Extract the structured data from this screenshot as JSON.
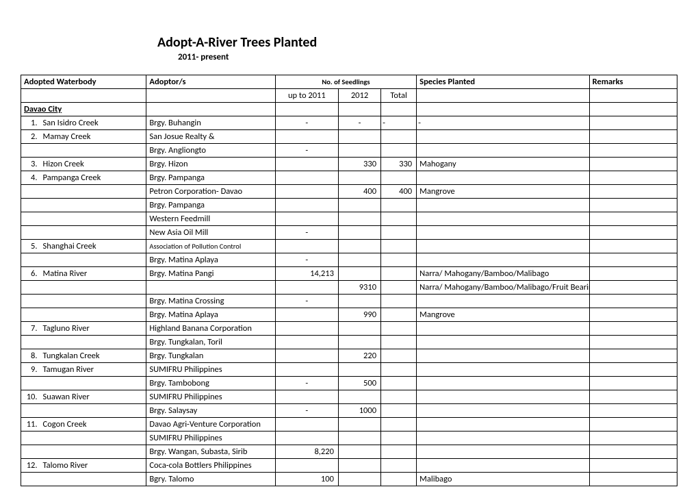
{
  "title": "Adopt-A-River Trees Planted",
  "subtitle": "2011- present",
  "headers": {
    "waterbody": "Adopted Waterbody",
    "adoptor": "Adoptor/s",
    "seedlings": "No. of Seedlings",
    "species": "Species Planted",
    "remarks": "Remarks",
    "upTo2011": "up to 2011",
    "y2012": "2012",
    "total": "Total"
  },
  "cityHeader": "Davao City",
  "rows": [
    {
      "n": "1.",
      "wb": "San Isidro Creek",
      "adp": "Brgy. Buhangin",
      "s1": "-",
      "s2": "-",
      "s3": "-",
      "sp": "-",
      "rm": ""
    },
    {
      "n": "2.",
      "wb": "Mamay Creek",
      "adp": "San Josue Realty &",
      "s1": "",
      "s2": "",
      "s3": "",
      "sp": "",
      "rm": ""
    },
    {
      "n": "",
      "wb": "",
      "adp": "Brgy. Angliongto",
      "s1": "-",
      "s2": "",
      "s3": "",
      "sp": "",
      "rm": ""
    },
    {
      "n": "3.",
      "wb": "Hizon Creek",
      "adp": "Brgy. Hizon",
      "s1": "",
      "s2": "330",
      "s3": "330",
      "sp": "Mahogany",
      "rm": ""
    },
    {
      "n": "4.",
      "wb": "Pampanga Creek",
      "adp": "Brgy. Pampanga",
      "s1": "",
      "s2": "",
      "s3": "",
      "sp": "",
      "rm": ""
    },
    {
      "n": "",
      "wb": "",
      "adp": "Petron Corporation- Davao",
      "s1": "",
      "s2": "400",
      "s3": "400",
      "sp": "Mangrove",
      "rm": ""
    },
    {
      "n": "",
      "wb": "",
      "adp": "Brgy. Pampanga",
      "s1": "",
      "s2": "",
      "s3": "",
      "sp": "",
      "rm": ""
    },
    {
      "n": "",
      "wb": "",
      "adp": "Western Feedmill",
      "s1": "",
      "s2": "",
      "s3": "",
      "sp": "",
      "rm": ""
    },
    {
      "n": "",
      "wb": "",
      "adp": "New Asia Oil Mill",
      "s1": "-",
      "s2": "",
      "s3": "",
      "sp": "",
      "rm": ""
    },
    {
      "n": "5.",
      "wb": "Shanghai Creek",
      "adp": "Association of Pollution Control",
      "s1": "",
      "s2": "",
      "s3": "",
      "sp": "",
      "rm": "",
      "small": true
    },
    {
      "n": "",
      "wb": "",
      "adp": "Brgy. Matina Aplaya",
      "s1": "-",
      "s2": "",
      "s3": "",
      "sp": "",
      "rm": ""
    },
    {
      "n": "6.",
      "wb": "Matina River",
      "adp": "Brgy. Matina Pangi",
      "s1": "14,213",
      "s2": "",
      "s3": "",
      "sp": "Narra/ Mahogany/Bamboo/Malibago",
      "rm": ""
    },
    {
      "n": "",
      "wb": "",
      "adp": "",
      "s1": "",
      "s2": "9310",
      "s3": "",
      "sp": "Narra/ Mahogany/Bamboo/Malibago/Fruit Bearing Trees",
      "rm": ""
    },
    {
      "n": "",
      "wb": "",
      "adp": "Brgy. Matina Crossing",
      "s1": "-",
      "s2": "",
      "s3": "",
      "sp": "",
      "rm": ""
    },
    {
      "n": "",
      "wb": "",
      "adp": "Brgy. Matina Aplaya",
      "s1": "",
      "s2": "990",
      "s3": "",
      "sp": "Mangrove",
      "rm": ""
    },
    {
      "n": "7.",
      "wb": "Tagluno River",
      "adp": "Highland Banana Corporation",
      "s1": "",
      "s2": "",
      "s3": "",
      "sp": "",
      "rm": ""
    },
    {
      "n": "",
      "wb": "",
      "adp": "Brgy. Tungkalan, Toril",
      "s1": "",
      "s2": "",
      "s3": "",
      "sp": "",
      "rm": ""
    },
    {
      "n": "8.",
      "wb": "Tungkalan Creek",
      "adp": "Brgy. Tungkalan",
      "s1": "",
      "s2": "220",
      "s3": "",
      "sp": "",
      "rm": ""
    },
    {
      "n": "9.",
      "wb": "Tamugan River",
      "adp": "SUMIFRU Philippines",
      "s1": "",
      "s2": "",
      "s3": "",
      "sp": "",
      "rm": ""
    },
    {
      "n": "",
      "wb": "",
      "adp": "Brgy. Tambobong",
      "s1": "-",
      "s2": "500",
      "s3": "",
      "sp": "",
      "rm": ""
    },
    {
      "n": "10.",
      "wb": "Suawan River",
      "adp": "SUMIFRU Philippines",
      "s1": "",
      "s2": "",
      "s3": "",
      "sp": "",
      "rm": ""
    },
    {
      "n": "",
      "wb": "",
      "adp": "Brgy. Salaysay",
      "s1": "-",
      "s2": "1000",
      "s3": "",
      "sp": "",
      "rm": ""
    },
    {
      "n": "11.",
      "wb": "Cogon Creek",
      "adp": "Davao Agri-Venture Corporation",
      "s1": "",
      "s2": "",
      "s3": "",
      "sp": "",
      "rm": ""
    },
    {
      "n": "",
      "wb": "",
      "adp": "SUMIFRU Philippines",
      "s1": "",
      "s2": "",
      "s3": "",
      "sp": "",
      "rm": ""
    },
    {
      "n": "",
      "wb": "",
      "adp": "Brgy. Wangan, Subasta, Sirib",
      "s1": "8,220",
      "s2": "",
      "s3": "",
      "sp": "",
      "rm": ""
    },
    {
      "n": "12.",
      "wb": "Talomo River",
      "adp": "Coca-cola Bottlers Philippines",
      "s1": "",
      "s2": "",
      "s3": "",
      "sp": "",
      "rm": ""
    },
    {
      "n": "",
      "wb": "",
      "adp": "Bgry. Talomo",
      "s1": "100",
      "s2": "",
      "s3": "",
      "sp": "Malibago",
      "rm": ""
    }
  ]
}
